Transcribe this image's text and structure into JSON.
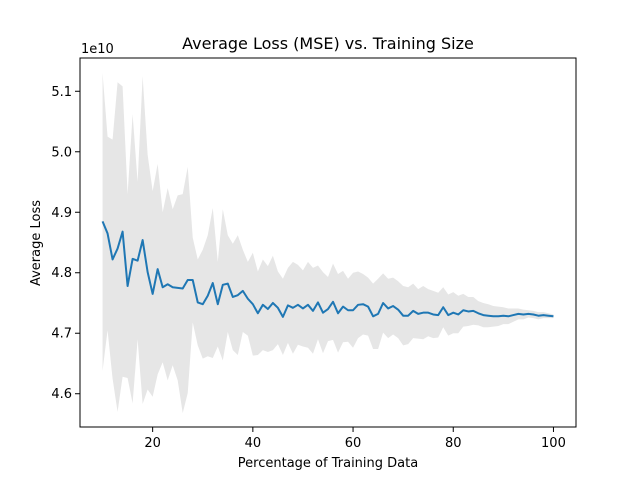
{
  "chart_data": {
    "type": "line",
    "title": "Average Loss (MSE) vs. Training Size",
    "xlabel": "Percentage of Training Data",
    "ylabel": "Average Loss",
    "y_offset_label": "1e10",
    "xlim": [
      5.5,
      104.5
    ],
    "ylim": [
      4.545,
      5.155
    ],
    "x_ticks": [
      20,
      40,
      60,
      80,
      100
    ],
    "x_tick_labels": [
      "20",
      "40",
      "60",
      "80",
      "100"
    ],
    "y_ticks": [
      4.6,
      4.7,
      4.8,
      4.9,
      5.0,
      5.1
    ],
    "y_tick_labels": [
      "4.6",
      "4.7",
      "4.8",
      "4.9",
      "5.0",
      "5.1"
    ],
    "grid": false,
    "colors": {
      "line": "#1f77b4",
      "band": "#e6e6e6",
      "axes": "#000000"
    },
    "series": [
      {
        "x": [
          10,
          11,
          12,
          13,
          14,
          15,
          16,
          17,
          18,
          19,
          20,
          21,
          22,
          23,
          24,
          25,
          26,
          27,
          28,
          29,
          30,
          31,
          32,
          33,
          34,
          35,
          36,
          37,
          38,
          39,
          40,
          41,
          42,
          43,
          44,
          45,
          46,
          47,
          48,
          49,
          50,
          51,
          52,
          53,
          54,
          55,
          56,
          57,
          58,
          59,
          60,
          61,
          62,
          63,
          64,
          65,
          66,
          67,
          68,
          69,
          70,
          71,
          72,
          73,
          74,
          75,
          76,
          77,
          78,
          79,
          80,
          81,
          82,
          83,
          84,
          85,
          86,
          87,
          88,
          89,
          90,
          91,
          92,
          93,
          94,
          95,
          96,
          97,
          98,
          99,
          100
        ],
        "values": [
          4.885,
          4.865,
          4.822,
          4.84,
          4.868,
          4.778,
          4.823,
          4.82,
          4.854,
          4.801,
          4.765,
          4.806,
          4.776,
          4.781,
          4.776,
          4.775,
          4.774,
          4.788,
          4.788,
          4.751,
          4.748,
          4.762,
          4.783,
          4.748,
          4.78,
          4.782,
          4.76,
          4.763,
          4.77,
          4.757,
          4.748,
          4.733,
          4.747,
          4.74,
          4.75,
          4.742,
          4.727,
          4.746,
          4.742,
          4.747,
          4.741,
          4.747,
          4.737,
          4.751,
          4.734,
          4.74,
          4.752,
          4.733,
          4.744,
          4.738,
          4.738,
          4.747,
          4.748,
          4.744,
          4.728,
          4.732,
          4.75,
          4.741,
          4.745,
          4.739,
          4.729,
          4.729,
          4.737,
          4.732,
          4.734,
          4.734,
          4.731,
          4.73,
          4.743,
          4.73,
          4.734,
          4.731,
          4.738,
          4.736,
          4.737,
          4.733,
          4.73,
          4.729,
          4.728,
          4.728,
          4.729,
          4.728,
          4.73,
          4.732,
          4.731,
          4.732,
          4.731,
          4.729,
          4.73,
          4.729,
          4.728
        ],
        "upper": [
          5.13,
          5.025,
          5.02,
          5.115,
          5.108,
          4.93,
          5.062,
          4.95,
          5.125,
          4.995,
          4.935,
          4.98,
          4.9,
          4.94,
          4.905,
          4.928,
          4.93,
          4.975,
          4.858,
          4.822,
          4.838,
          4.862,
          4.907,
          4.818,
          4.905,
          4.862,
          4.848,
          4.862,
          4.838,
          4.818,
          4.833,
          4.802,
          4.822,
          4.811,
          4.828,
          4.802,
          4.79,
          4.808,
          4.818,
          4.813,
          4.804,
          4.818,
          4.808,
          4.812,
          4.801,
          4.793,
          4.815,
          4.798,
          4.803,
          4.79,
          4.8,
          4.802,
          4.798,
          4.792,
          4.782,
          4.79,
          4.799,
          4.79,
          4.792,
          4.786,
          4.778,
          4.776,
          4.782,
          4.773,
          4.778,
          4.773,
          4.77,
          4.767,
          4.776,
          4.764,
          4.768,
          4.762,
          4.765,
          4.76,
          4.76,
          4.753,
          4.75,
          4.748,
          4.745,
          4.744,
          4.743,
          4.741,
          4.741,
          4.741,
          4.739,
          4.738,
          4.737,
          4.735,
          4.735,
          4.733,
          4.731
        ],
        "lower": [
          4.638,
          4.705,
          4.625,
          4.57,
          4.628,
          4.626,
          4.584,
          4.69,
          4.583,
          4.607,
          4.595,
          4.632,
          4.652,
          4.622,
          4.647,
          4.622,
          4.568,
          4.601,
          4.718,
          4.68,
          4.658,
          4.662,
          4.659,
          4.678,
          4.655,
          4.702,
          4.672,
          4.664,
          4.702,
          4.696,
          4.663,
          4.664,
          4.672,
          4.669,
          4.672,
          4.682,
          4.664,
          4.684,
          4.666,
          4.681,
          4.678,
          4.676,
          4.666,
          4.69,
          4.667,
          4.687,
          4.689,
          4.668,
          4.685,
          4.686,
          4.676,
          4.692,
          4.698,
          4.696,
          4.674,
          4.674,
          4.701,
          4.692,
          4.698,
          4.692,
          4.68,
          4.682,
          4.692,
          4.691,
          4.69,
          4.695,
          4.692,
          4.693,
          4.71,
          4.696,
          4.7,
          4.7,
          4.711,
          4.712,
          4.714,
          4.713,
          4.71,
          4.71,
          4.711,
          4.712,
          4.715,
          4.715,
          4.719,
          4.723,
          4.723,
          4.726,
          4.725,
          4.723,
          4.725,
          4.725,
          4.725
        ]
      }
    ]
  }
}
